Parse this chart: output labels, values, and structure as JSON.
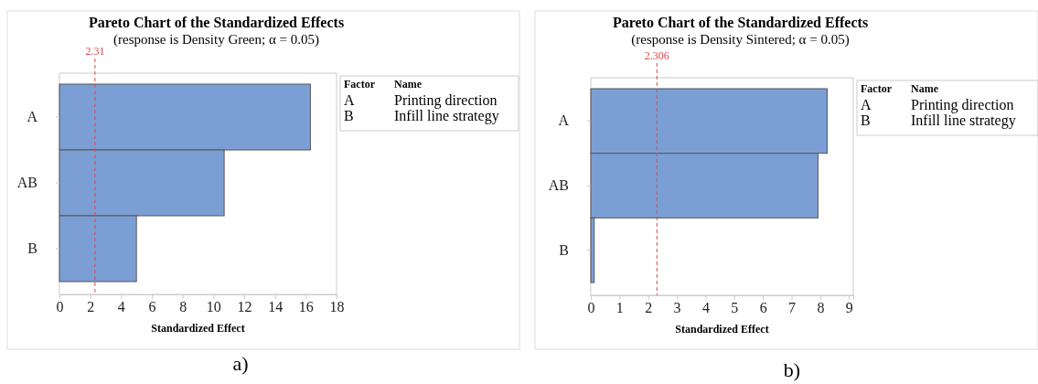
{
  "chart_data": [
    {
      "type": "bar",
      "orientation": "horizontal",
      "title": "Pareto Chart of the Standardized Effects",
      "subtitle": "(response is Density Green; α = 0.05)",
      "xlabel": "Standardized Effect",
      "categories": [
        "A",
        "AB",
        "B"
      ],
      "values": [
        16.3,
        10.7,
        5.0
      ],
      "color": "#7b9fd4",
      "xlim": [
        0,
        18
      ],
      "xticks": [
        0,
        2,
        4,
        6,
        8,
        10,
        12,
        14,
        16,
        18
      ],
      "ref_lines": [
        {
          "axis": "x",
          "value": 2.31,
          "label": "2.31",
          "color": "#d9474f",
          "line_style": "dashed"
        }
      ],
      "grid": false,
      "annotations": [
        "Factor",
        "Name",
        "A",
        "Printing direction",
        "B",
        "Infill line strategy",
        "a)"
      ]
    },
    {
      "type": "bar",
      "orientation": "horizontal",
      "title": "Pareto Chart of the Standardized Effects",
      "subtitle": "(response is Density Sintered; α = 0.05)",
      "xlabel": "Standardized Effect",
      "categories": [
        "A",
        "AB",
        "B"
      ],
      "values": [
        8.24,
        7.92,
        0.12
      ],
      "color": "#7b9fd4",
      "xlim": [
        0,
        9.15
      ],
      "xticks": [
        0,
        1,
        2,
        3,
        4,
        5,
        6,
        7,
        8,
        9
      ],
      "ref_lines": [
        {
          "axis": "x",
          "value": 2.306,
          "label": "2.306",
          "color": "#d9474f",
          "line_style": "dashed"
        }
      ],
      "grid": false,
      "annotations": [
        "Factor",
        "Name",
        "A",
        "Printing direction",
        "B",
        "Infill line strategy",
        "b)"
      ]
    }
  ]
}
